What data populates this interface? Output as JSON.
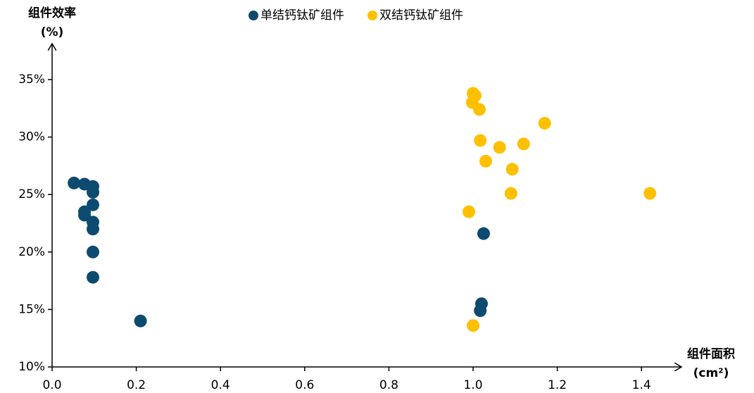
{
  "chart_data": {
    "type": "scatter",
    "y_label_lines": [
      "组件效率",
      "(%)"
    ],
    "x_label_lines": [
      "组件面积",
      "(cm²)"
    ],
    "legend": "top",
    "xlim": [
      0,
      1.5
    ],
    "ylim": [
      10,
      38
    ],
    "xticks": [
      {
        "value": 0,
        "label": "0.0"
      },
      0.2,
      0.4,
      0.6,
      0.8,
      {
        "value": 1,
        "label": "1.0"
      },
      1.2,
      1.4
    ],
    "yticks": [
      {
        "value": 10,
        "label": "10%"
      },
      {
        "value": 15,
        "label": "15%"
      },
      {
        "value": 20,
        "label": "20%"
      },
      {
        "value": 25,
        "label": "25%"
      },
      {
        "value": 30,
        "label": "30%"
      },
      {
        "value": 35,
        "label": "35%"
      }
    ],
    "series": [
      {
        "name": "单结钙钛矿组件",
        "color": "#0d4a70",
        "x": [
          0.052,
          0.077,
          0.097,
          0.097,
          0.097,
          0.077,
          0.077,
          0.097,
          0.097,
          0.097,
          0.097,
          0.21,
          1.025,
          1.02,
          1.017
        ],
        "values": [
          26.0,
          25.9,
          25.7,
          25.2,
          24.1,
          23.5,
          23.2,
          22.6,
          22.0,
          20.0,
          17.8,
          14.0,
          21.6,
          15.5,
          14.9
        ]
      },
      {
        "name": "双结钙钛矿组件",
        "color": "#ffc000",
        "x": [
          1.0,
          1.005,
          0.998,
          1.015,
          1.17,
          1.017,
          1.12,
          1.063,
          1.03,
          1.093,
          1.09,
          1.42,
          0.99,
          1.0
        ],
        "values": [
          33.8,
          33.6,
          33.0,
          32.4,
          31.2,
          29.7,
          29.4,
          29.1,
          27.9,
          27.2,
          25.1,
          25.1,
          23.5,
          13.6
        ]
      }
    ]
  }
}
